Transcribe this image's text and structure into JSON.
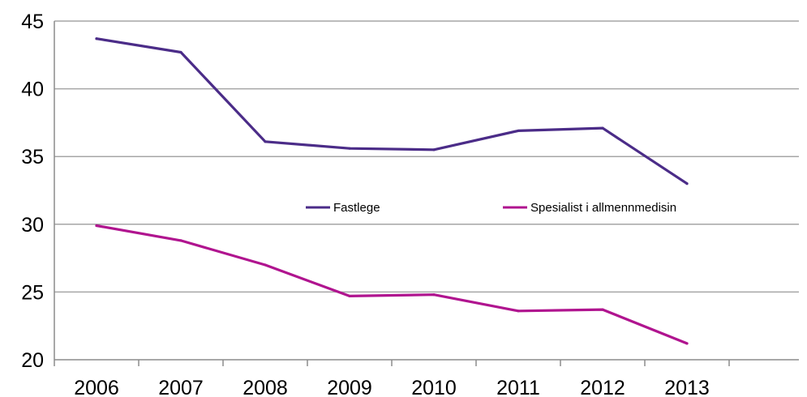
{
  "chart_data": {
    "type": "line",
    "title": "",
    "xlabel": "",
    "ylabel": "",
    "categories": [
      "2006",
      "2007",
      "2008",
      "2009",
      "2010",
      "2011",
      "2012",
      "2013"
    ],
    "ylim": [
      20,
      45
    ],
    "yticks": [
      "20",
      "25",
      "30",
      "35",
      "40",
      "45"
    ],
    "grid": "horizontal",
    "legend_position": "center-right",
    "series": [
      {
        "name": "Fastlege",
        "color": "#4b2c88",
        "values": [
          43.7,
          42.7,
          36.1,
          35.6,
          35.5,
          36.9,
          37.1,
          33.0
        ]
      },
      {
        "name": "Spesialist i allmennmedisin",
        "color": "#b0148f",
        "values": [
          29.9,
          28.8,
          27.0,
          24.7,
          24.8,
          23.6,
          23.7,
          21.2
        ]
      }
    ]
  }
}
